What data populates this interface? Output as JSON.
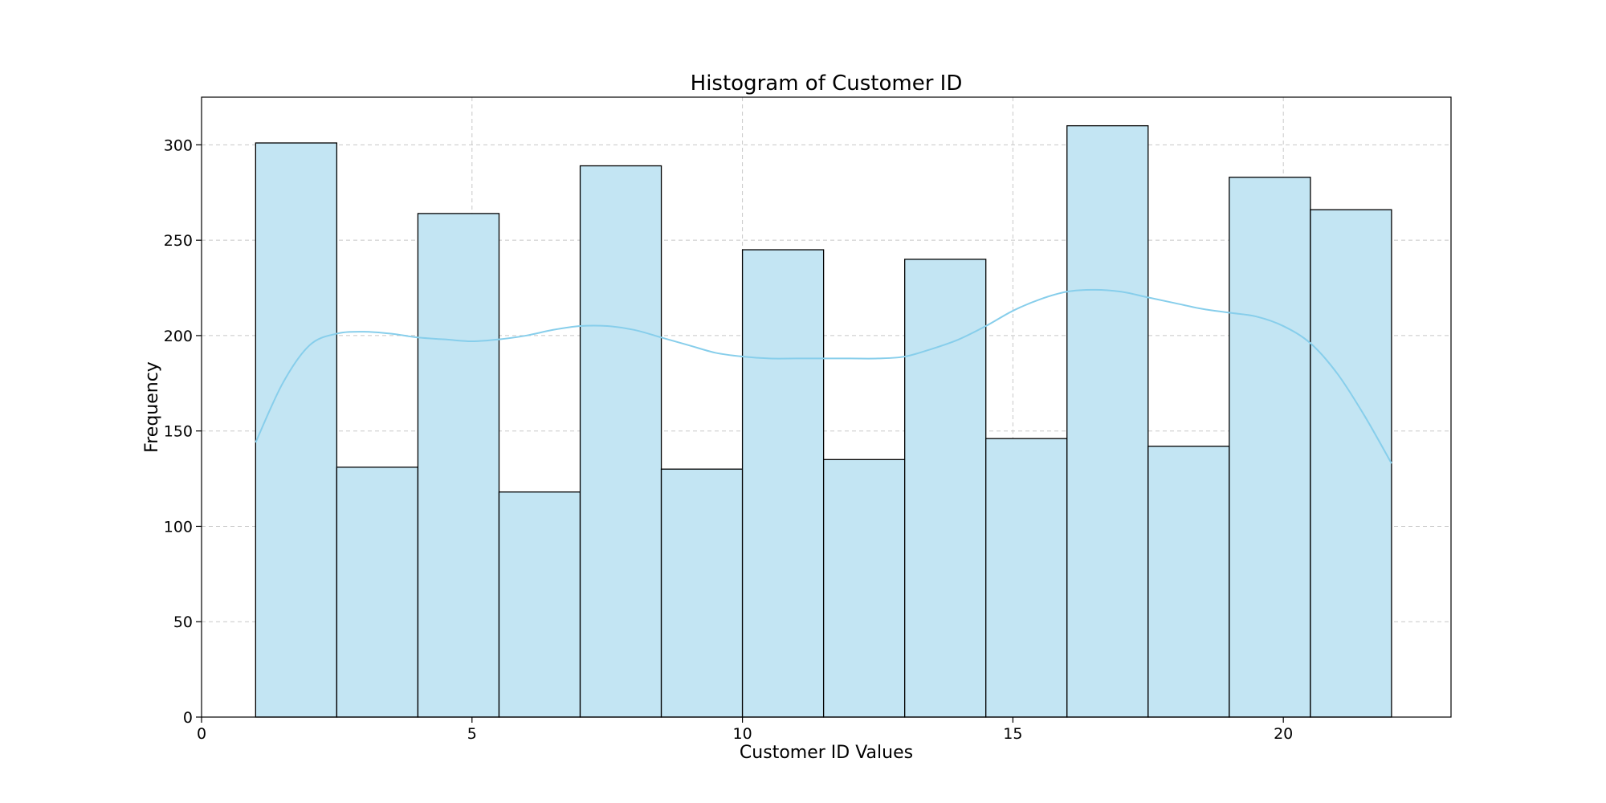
{
  "chart_data": {
    "type": "bar",
    "title": "Histogram of Customer ID",
    "xlabel": "Customer ID Values",
    "ylabel": "Frequency",
    "xlim": [
      0,
      23.1
    ],
    "ylim": [
      0,
      325
    ],
    "xticks": [
      0,
      5,
      10,
      15,
      20
    ],
    "yticks": [
      0,
      50,
      100,
      150,
      200,
      250,
      300
    ],
    "grid": true,
    "bins": [
      {
        "start": 1.0,
        "end": 2.5,
        "count": 301
      },
      {
        "start": 2.5,
        "end": 4.0,
        "count": 131
      },
      {
        "start": 4.0,
        "end": 5.5,
        "count": 264
      },
      {
        "start": 5.5,
        "end": 7.0,
        "count": 118
      },
      {
        "start": 7.0,
        "end": 8.5,
        "count": 289
      },
      {
        "start": 8.5,
        "end": 10.0,
        "count": 130
      },
      {
        "start": 10.0,
        "end": 11.5,
        "count": 245
      },
      {
        "start": 11.5,
        "end": 13.0,
        "count": 135
      },
      {
        "start": 13.0,
        "end": 14.5,
        "count": 240
      },
      {
        "start": 14.5,
        "end": 16.0,
        "count": 146
      },
      {
        "start": 16.0,
        "end": 17.5,
        "count": 310
      },
      {
        "start": 17.5,
        "end": 19.0,
        "count": 142
      },
      {
        "start": 19.0,
        "end": 20.5,
        "count": 283
      },
      {
        "start": 20.5,
        "end": 22.0,
        "count": 266
      }
    ],
    "kde": {
      "x": [
        1.0,
        1.5,
        2.0,
        2.5,
        3.0,
        3.5,
        4.0,
        4.5,
        5.0,
        5.5,
        6.0,
        6.5,
        7.0,
        7.5,
        8.0,
        8.5,
        9.0,
        9.5,
        10.0,
        10.5,
        11.0,
        11.5,
        12.0,
        12.5,
        13.0,
        13.5,
        14.0,
        14.5,
        15.0,
        15.5,
        16.0,
        16.5,
        17.0,
        17.5,
        18.0,
        18.5,
        19.0,
        19.5,
        20.0,
        20.5,
        21.0,
        21.5,
        22.0
      ],
      "y": [
        144,
        175,
        195,
        201,
        202,
        201,
        199,
        198,
        197,
        198,
        200,
        203,
        205,
        205,
        203,
        199,
        195,
        191,
        189,
        188,
        188,
        188,
        188,
        188,
        189,
        193,
        198,
        205,
        213,
        219,
        223,
        224,
        223,
        220,
        217,
        214,
        212,
        210,
        205,
        196,
        180,
        158,
        133
      ]
    },
    "colors": {
      "bar_fill": "#c3e5f3",
      "bar_edge": "#000000",
      "kde_line": "#87ceeb",
      "grid": "#c8c8c8"
    }
  }
}
